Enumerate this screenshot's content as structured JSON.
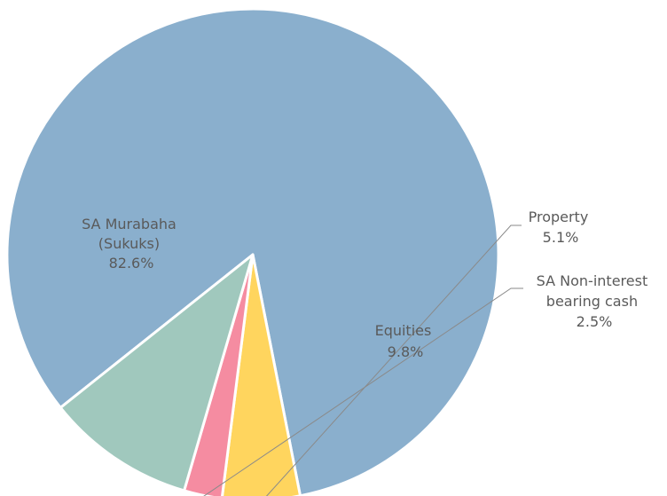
{
  "chart_data": {
    "type": "pie",
    "slices": [
      {
        "label_lines": [
          "SA Murabaha",
          "(Sukuks)"
        ],
        "value_label": "82.6%",
        "value": 82.6,
        "color": "#8aafcd"
      },
      {
        "label_lines": [
          "Property"
        ],
        "value_label": "5.1%",
        "value": 5.1,
        "color": "#ffd55e"
      },
      {
        "label_lines": [
          "SA Non-interest",
          "bearing cash"
        ],
        "value_label": "2.5%",
        "value": 2.5,
        "color": "#f58ca1"
      },
      {
        "label_lines": [
          "Equities"
        ],
        "value_label": "9.8%",
        "value": 9.8,
        "color": "#a0c8bd"
      }
    ]
  }
}
